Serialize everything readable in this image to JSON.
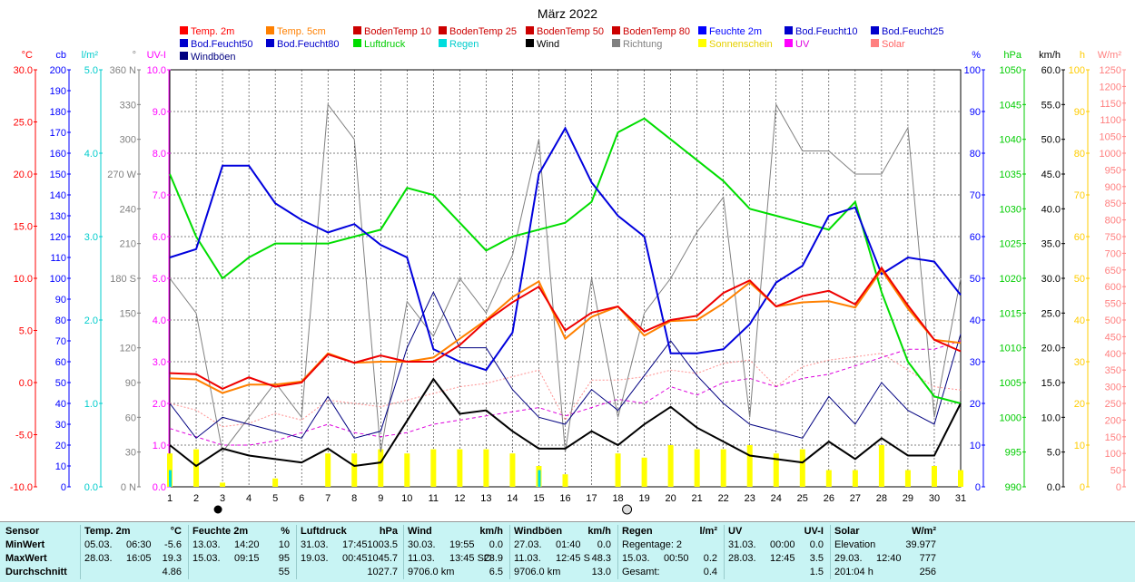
{
  "chart_data": {
    "type": "line",
    "title": "März 2022",
    "x": [
      1,
      2,
      3,
      4,
      5,
      6,
      7,
      8,
      9,
      10,
      11,
      12,
      13,
      14,
      15,
      16,
      17,
      18,
      19,
      20,
      21,
      22,
      23,
      24,
      25,
      26,
      27,
      28,
      29,
      30,
      31
    ],
    "legend": [
      {
        "name": "Temp. 2m",
        "color": "#ff0000"
      },
      {
        "name": "Temp. 5cm",
        "color": "#ff8000"
      },
      {
        "name": "BodenTemp 10",
        "color": "#cc0000"
      },
      {
        "name": "BodenTemp 25",
        "color": "#cc0000"
      },
      {
        "name": "BodenTemp 50",
        "color": "#cc0000"
      },
      {
        "name": "BodenTemp 80",
        "color": "#cc0000"
      },
      {
        "name": "Feuchte 2m",
        "color": "#0000ff"
      },
      {
        "name": "Bod.Feucht10",
        "color": "#0000cc"
      },
      {
        "name": "Bod.Feucht25",
        "color": "#0000cc"
      },
      {
        "name": "Bod.Feucht50",
        "color": "#0000cc"
      },
      {
        "name": "Bod.Feucht80",
        "color": "#0000cc"
      },
      {
        "name": "Luftdruck",
        "color": "#00dd00"
      },
      {
        "name": "Regen",
        "color": "#00dddd"
      },
      {
        "name": "Wind",
        "color": "#000000"
      },
      {
        "name": "Richtung",
        "color": "#808080"
      },
      {
        "name": "Sonnenschein",
        "color": "#ffff00"
      },
      {
        "name": "UV",
        "color": "#ff00ff"
      },
      {
        "name": "Solar",
        "color": "#ff8080"
      },
      {
        "name": "Windböen",
        "color": "#000080"
      }
    ],
    "axes": [
      {
        "unit": "°C",
        "color": "#ff0000",
        "ticks": [
          "30.0",
          "25.0",
          "20.0",
          "15.0",
          "10.0",
          "5.0",
          "0.0",
          "-5.0",
          "-10.0"
        ]
      },
      {
        "unit": "cb",
        "color": "#0000ff",
        "ticks": [
          "200",
          "190",
          "180",
          "170",
          "160",
          "150",
          "140",
          "130",
          "120",
          "110",
          "100",
          "90",
          "80",
          "70",
          "60",
          "50",
          "40",
          "30",
          "20",
          "10",
          "0"
        ]
      },
      {
        "unit": "l/m²",
        "color": "#00cccc",
        "ticks": [
          "5.0",
          "4.0",
          "3.0",
          "2.0",
          "1.0",
          "0.0"
        ]
      },
      {
        "unit": "°",
        "color": "#808080",
        "ticks": [
          "360 N",
          "330",
          "300",
          "270 W",
          "240",
          "210",
          "180 S",
          "150",
          "120",
          "90",
          "60",
          "30",
          "0 N"
        ]
      },
      {
        "unit": "UV-I",
        "color": "#ff00ff",
        "ticks": [
          "10.0",
          "9.0",
          "8.0",
          "7.0",
          "6.0",
          "5.0",
          "4.0",
          "3.0",
          "2.0",
          "1.0",
          "0.0"
        ]
      },
      {
        "unit": "%",
        "color": "#0000ff",
        "ticks": [
          "100",
          "90",
          "80",
          "70",
          "60",
          "50",
          "40",
          "30",
          "20",
          "10",
          "0"
        ]
      },
      {
        "unit": "hPa",
        "color": "#00cc00",
        "ticks": [
          "1050",
          "1045",
          "1040",
          "1035",
          "1030",
          "1025",
          "1020",
          "1015",
          "1010",
          "1005",
          "1000",
          "995",
          "990"
        ]
      },
      {
        "unit": "km/h",
        "color": "#000000",
        "ticks": [
          "60.0",
          "55.0",
          "50.0",
          "45.0",
          "40.0",
          "35.0",
          "30.0",
          "25.0",
          "20.0",
          "15.0",
          "10.0",
          "5.0",
          "0.0"
        ]
      },
      {
        "unit": "h",
        "color": "#ffcc00",
        "ticks": [
          "100",
          "90",
          "80",
          "70",
          "60",
          "50",
          "40",
          "30",
          "20",
          "10",
          "0"
        ]
      },
      {
        "unit": "W/m²",
        "color": "#ff8080",
        "ticks": [
          "1250",
          "1200",
          "1150",
          "1100",
          "1050",
          "1000",
          "950",
          "900",
          "850",
          "800",
          "750",
          "700",
          "650",
          "600",
          "550",
          "500",
          "450",
          "400",
          "350",
          "300",
          "250",
          "200",
          "150",
          "100",
          "50",
          "0"
        ]
      }
    ],
    "series": [
      {
        "name": "Temp. 2m",
        "unit": "°C",
        "values": [
          0.9,
          0.8,
          -0.6,
          0.5,
          -0.4,
          0.0,
          2.7,
          1.9,
          2.6,
          2.0,
          2.0,
          3.6,
          5.9,
          7.7,
          9.2,
          5.0,
          6.7,
          7.3,
          4.9,
          6.0,
          6.4,
          8.6,
          9.8,
          7.3,
          8.3,
          8.8,
          7.5,
          11.0,
          7.4,
          4.1,
          3.0
        ]
      },
      {
        "name": "Temp. 5cm",
        "unit": "°C",
        "values": [
          0.4,
          0.3,
          -1.0,
          -0.2,
          -0.2,
          0.1,
          2.8,
          1.9,
          2.0,
          2.0,
          2.4,
          4.2,
          6.0,
          8.2,
          9.7,
          4.2,
          6.3,
          7.3,
          4.5,
          5.9,
          6.0,
          7.6,
          9.6,
          7.3,
          7.7,
          7.8,
          7.2,
          10.8,
          7.1,
          4.1,
          3.8
        ]
      },
      {
        "name": "Feuchte 2m",
        "unit": "%",
        "values": [
          55,
          57,
          77,
          77,
          68,
          64,
          61,
          63,
          58,
          55,
          33,
          30,
          28,
          37,
          75,
          86,
          73,
          65,
          60,
          32,
          32,
          33,
          39,
          49,
          53,
          65,
          67,
          51,
          55,
          54,
          46
        ]
      },
      {
        "name": "Luftdruck",
        "unit": "hPa",
        "values": [
          1035,
          1026,
          1020,
          1023,
          1025,
          1025,
          1025,
          1026,
          1027,
          1033,
          1032,
          1028,
          1024,
          1026,
          1027,
          1028,
          1031,
          1041,
          1043,
          1040,
          1037,
          1034,
          1030,
          1029,
          1028,
          1027,
          1031,
          1018,
          1008,
          1003,
          1002
        ]
      },
      {
        "name": "Wind",
        "unit": "km/h",
        "values": [
          6.0,
          3.0,
          5.5,
          4.5,
          4.0,
          3.5,
          5.5,
          3.0,
          3.5,
          9.5,
          15.5,
          10.5,
          11.0,
          8.0,
          5.5,
          5.5,
          8.0,
          6.0,
          9.0,
          11.5,
          8.5,
          6.5,
          4.5,
          4.0,
          3.5,
          6.5,
          4.0,
          7.0,
          4.5,
          4.5,
          12.0
        ]
      },
      {
        "name": "Windböen",
        "unit": "km/h",
        "values": [
          12,
          7,
          10,
          9,
          8,
          7,
          13,
          7,
          8,
          20,
          28,
          20,
          20,
          14,
          10,
          9,
          14,
          11,
          16,
          21,
          16,
          12,
          9,
          8,
          7,
          13,
          9,
          15,
          11,
          9,
          22
        ]
      },
      {
        "name": "Richtung",
        "unit": "°",
        "values": [
          180,
          150,
          30,
          60,
          90,
          60,
          330,
          300,
          30,
          160,
          130,
          180,
          150,
          200,
          300,
          30,
          180,
          60,
          150,
          180,
          220,
          250,
          60,
          330,
          290,
          290,
          270,
          270,
          310,
          60,
          180
        ]
      },
      {
        "name": "Sonnenschein",
        "unit": "h",
        "values": [
          8,
          9,
          1,
          0,
          2,
          0,
          8,
          8,
          9,
          8,
          9,
          9,
          9,
          8,
          5,
          3,
          0,
          8,
          7,
          10,
          9,
          9,
          10,
          8,
          9,
          4,
          4,
          10,
          4,
          5,
          4
        ]
      },
      {
        "name": "UV",
        "unit": "UV-I",
        "values": [
          1.4,
          1.2,
          1.0,
          1.0,
          1.1,
          1.3,
          1.5,
          1.3,
          1.2,
          1.3,
          1.5,
          1.6,
          1.7,
          1.8,
          1.9,
          1.7,
          1.9,
          2.1,
          2.0,
          2.4,
          2.2,
          2.5,
          2.6,
          2.4,
          2.6,
          2.7,
          2.9,
          3.1,
          3.3,
          3.3,
          3.5
        ]
      },
      {
        "name": "Solar",
        "unit": "W/m²",
        "values": [
          250,
          230,
          180,
          190,
          220,
          200,
          260,
          250,
          240,
          260,
          280,
          300,
          310,
          330,
          350,
          200,
          320,
          320,
          330,
          350,
          340,
          370,
          380,
          300,
          360,
          380,
          390,
          400,
          350,
          300,
          290
        ]
      },
      {
        "name": "Regen",
        "unit": "l/m²",
        "values": [
          0.2,
          0,
          0,
          0,
          0,
          0,
          0,
          0,
          0,
          0,
          0,
          0,
          0,
          0,
          0.2,
          0,
          0,
          0,
          0,
          0,
          0,
          0,
          0,
          0,
          0,
          0,
          0,
          0,
          0,
          0,
          0
        ]
      }
    ],
    "xlim": [
      1,
      31
    ],
    "grid": true
  },
  "stats": {
    "row_labels": [
      "Sensor",
      "MinWert",
      "MaxWert",
      "Durchschnitt"
    ],
    "groups": [
      {
        "name": "Temp. 2m",
        "unit": "°C",
        "rows": [
          [
            "05.03.",
            "06:30",
            "-5.6"
          ],
          [
            "28.03.",
            "16:05",
            "19.3"
          ],
          [
            "",
            "",
            "4.86"
          ]
        ]
      },
      {
        "name": "Feuchte 2m",
        "unit": "%",
        "rows": [
          [
            "13.03.",
            "14:20",
            "10"
          ],
          [
            "15.03.",
            "09:15",
            "95"
          ],
          [
            "",
            "",
            "55"
          ]
        ]
      },
      {
        "name": "Luftdruck",
        "unit": "hPa",
        "rows": [
          [
            "31.03.",
            "17:45",
            "1003.5"
          ],
          [
            "19.03.",
            "00:45",
            "1045.7"
          ],
          [
            "",
            "",
            "1027.7"
          ]
        ]
      },
      {
        "name": "Wind",
        "unit": "km/h",
        "rows": [
          [
            "30.03.",
            "19:55",
            "0.0"
          ],
          [
            "11.03.",
            "13:45 SO",
            "23.9"
          ],
          [
            "9706.0 km",
            "",
            "6.5"
          ]
        ]
      },
      {
        "name": "Windböen",
        "unit": "km/h",
        "rows": [
          [
            "27.03.",
            "01:40",
            "0.0"
          ],
          [
            "11.03.",
            "12:45 S",
            "48.3"
          ],
          [
            "9706.0 km",
            "",
            "13.0"
          ]
        ]
      },
      {
        "name": "Regen",
        "unit": "l/m²",
        "rows": [
          [
            "Regentage: 2",
            "",
            ""
          ],
          [
            "15.03.",
            "00:50",
            "0.2"
          ],
          [
            "Gesamt:",
            "",
            "0.4"
          ]
        ]
      },
      {
        "name": "UV",
        "unit": "UV-I",
        "rows": [
          [
            "31.03.",
            "00:00",
            "0.0"
          ],
          [
            "28.03.",
            "12:45",
            "3.5"
          ],
          [
            "",
            "",
            "1.5"
          ]
        ]
      },
      {
        "name": "Solar",
        "unit": "W/m²",
        "rows": [
          [
            "Elevation",
            "",
            "39.977"
          ],
          [
            "29.03.",
            "12:40",
            "777"
          ],
          [
            "201:04 h",
            "",
            "256"
          ]
        ]
      }
    ]
  }
}
